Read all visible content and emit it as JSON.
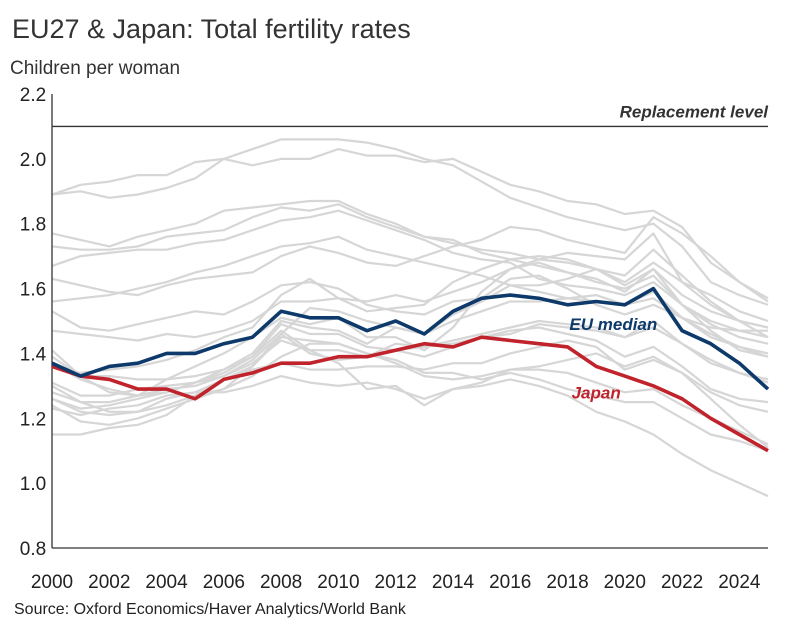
{
  "header": {
    "title": "EU27 & Japan: Total fertility rates",
    "subtitle": "Children per woman"
  },
  "footer": {
    "source": "Source: Oxford Economics/Haver Analytics/World Bank"
  },
  "chart_data": {
    "type": "line",
    "title": "EU27 & Japan: Total fertility rates",
    "ylabel": "Children per woman",
    "xlabel": "",
    "x": [
      2000,
      2001,
      2002,
      2003,
      2004,
      2005,
      2006,
      2007,
      2008,
      2009,
      2010,
      2011,
      2012,
      2013,
      2014,
      2015,
      2016,
      2017,
      2018,
      2019,
      2020,
      2021,
      2022,
      2023,
      2024,
      2025
    ],
    "xlim": [
      2000,
      2025
    ],
    "ylim": [
      0.8,
      2.2
    ],
    "xticks": [
      "2000",
      "2002",
      "2004",
      "2006",
      "2008",
      "2010",
      "2012",
      "2014",
      "2016",
      "2018",
      "2020",
      "2022",
      "2024"
    ],
    "yticks": [
      "0.8",
      "1.0",
      "1.2",
      "1.4",
      "1.6",
      "1.8",
      "2.0",
      "2.2"
    ],
    "grid": false,
    "reference_line": {
      "label": "Replacement level",
      "value": 2.1
    },
    "series": [
      {
        "name": "EU median",
        "color": "#0d3a6b",
        "values": [
          1.37,
          1.33,
          1.36,
          1.37,
          1.4,
          1.4,
          1.43,
          1.45,
          1.53,
          1.51,
          1.51,
          1.47,
          1.5,
          1.46,
          1.53,
          1.57,
          1.58,
          1.57,
          1.55,
          1.56,
          1.55,
          1.6,
          1.47,
          1.43,
          1.37,
          1.29
        ]
      },
      {
        "name": "Japan",
        "color": "#c0232b",
        "values": [
          1.36,
          1.33,
          1.32,
          1.29,
          1.29,
          1.26,
          1.32,
          1.34,
          1.37,
          1.37,
          1.39,
          1.39,
          1.41,
          1.43,
          1.42,
          1.45,
          1.44,
          1.43,
          1.42,
          1.36,
          1.33,
          1.3,
          1.26,
          1.2,
          1.15,
          1.1
        ]
      }
    ],
    "background_series_color": "#d6d6d6",
    "background_series": [
      [
        1.89,
        1.9,
        1.88,
        1.89,
        1.91,
        1.94,
        2.0,
        1.98,
        2.0,
        2.0,
        2.03,
        2.01,
        2.01,
        1.99,
        2.0,
        1.96,
        1.92,
        1.9,
        1.87,
        1.86,
        1.83,
        1.84,
        1.79,
        1.68,
        1.62,
        1.57
      ],
      [
        1.89,
        1.92,
        1.93,
        1.95,
        1.95,
        1.99,
        2.0,
        2.03,
        2.06,
        2.06,
        2.06,
        2.05,
        2.03,
        2.0,
        1.98,
        1.93,
        1.88,
        1.85,
        1.82,
        1.8,
        1.78,
        1.8,
        1.73,
        1.62,
        1.58,
        1.55
      ],
      [
        1.77,
        1.75,
        1.73,
        1.76,
        1.78,
        1.8,
        1.84,
        1.85,
        1.86,
        1.87,
        1.87,
        1.83,
        1.8,
        1.76,
        1.74,
        1.72,
        1.71,
        1.69,
        1.68,
        1.66,
        1.64,
        1.72,
        1.64,
        1.56,
        1.5,
        1.45
      ],
      [
        1.73,
        1.72,
        1.72,
        1.73,
        1.76,
        1.77,
        1.78,
        1.82,
        1.85,
        1.84,
        1.86,
        1.82,
        1.79,
        1.76,
        1.75,
        1.71,
        1.69,
        1.67,
        1.65,
        1.62,
        1.6,
        1.64,
        1.55,
        1.5,
        1.47,
        1.45
      ],
      [
        1.67,
        1.7,
        1.71,
        1.72,
        1.72,
        1.74,
        1.75,
        1.78,
        1.81,
        1.82,
        1.84,
        1.81,
        1.78,
        1.75,
        1.71,
        1.69,
        1.68,
        1.63,
        1.61,
        1.6,
        1.58,
        1.62,
        1.55,
        1.49,
        1.45,
        1.43
      ],
      [
        1.56,
        1.57,
        1.58,
        1.6,
        1.62,
        1.65,
        1.67,
        1.7,
        1.73,
        1.74,
        1.76,
        1.72,
        1.7,
        1.68,
        1.66,
        1.64,
        1.61,
        1.59,
        1.57,
        1.56,
        1.55,
        1.57,
        1.51,
        1.45,
        1.42,
        1.39
      ],
      [
        1.63,
        1.61,
        1.59,
        1.58,
        1.61,
        1.63,
        1.64,
        1.65,
        1.7,
        1.73,
        1.71,
        1.68,
        1.67,
        1.7,
        1.73,
        1.75,
        1.79,
        1.78,
        1.75,
        1.73,
        1.71,
        1.82,
        1.77,
        1.7,
        1.62,
        1.56
      ],
      [
        1.53,
        1.48,
        1.47,
        1.49,
        1.51,
        1.53,
        1.52,
        1.56,
        1.61,
        1.62,
        1.6,
        1.55,
        1.53,
        1.52,
        1.56,
        1.57,
        1.63,
        1.64,
        1.6,
        1.55,
        1.52,
        1.55,
        1.51,
        1.48,
        1.47,
        1.47
      ],
      [
        1.47,
        1.46,
        1.45,
        1.44,
        1.46,
        1.45,
        1.47,
        1.5,
        1.56,
        1.56,
        1.57,
        1.56,
        1.58,
        1.56,
        1.59,
        1.62,
        1.66,
        1.68,
        1.65,
        1.63,
        1.59,
        1.66,
        1.58,
        1.53,
        1.5,
        1.48
      ],
      [
        1.39,
        1.33,
        1.33,
        1.32,
        1.32,
        1.36,
        1.4,
        1.45,
        1.51,
        1.49,
        1.51,
        1.45,
        1.45,
        1.41,
        1.48,
        1.59,
        1.66,
        1.69,
        1.71,
        1.7,
        1.69,
        1.77,
        1.62,
        1.58,
        1.53,
        1.5
      ],
      [
        1.37,
        1.32,
        1.29,
        1.27,
        1.32,
        1.33,
        1.35,
        1.4,
        1.5,
        1.48,
        1.47,
        1.43,
        1.48,
        1.46,
        1.52,
        1.56,
        1.61,
        1.61,
        1.63,
        1.66,
        1.61,
        1.66,
        1.55,
        1.47,
        1.41,
        1.39
      ],
      [
        1.3,
        1.25,
        1.22,
        1.22,
        1.26,
        1.28,
        1.32,
        1.36,
        1.46,
        1.4,
        1.38,
        1.39,
        1.41,
        1.42,
        1.43,
        1.45,
        1.47,
        1.48,
        1.46,
        1.44,
        1.39,
        1.42,
        1.36,
        1.29,
        1.26,
        1.25
      ],
      [
        1.26,
        1.22,
        1.21,
        1.22,
        1.24,
        1.27,
        1.29,
        1.36,
        1.45,
        1.44,
        1.43,
        1.4,
        1.38,
        1.34,
        1.34,
        1.32,
        1.34,
        1.32,
        1.29,
        1.27,
        1.25,
        1.25,
        1.2,
        1.15,
        1.13,
        1.1
      ],
      [
        1.24,
        1.19,
        1.18,
        1.2,
        1.23,
        1.26,
        1.29,
        1.33,
        1.39,
        1.43,
        1.43,
        1.4,
        1.37,
        1.33,
        1.32,
        1.33,
        1.35,
        1.36,
        1.38,
        1.4,
        1.36,
        1.39,
        1.34,
        1.28,
        1.24,
        1.22
      ],
      [
        1.15,
        1.15,
        1.17,
        1.18,
        1.21,
        1.27,
        1.32,
        1.35,
        1.37,
        1.35,
        1.35,
        1.36,
        1.36,
        1.35,
        1.37,
        1.37,
        1.4,
        1.42,
        1.44,
        1.42,
        1.35,
        1.38,
        1.34,
        1.26,
        1.18,
        1.11
      ],
      [
        1.23,
        1.21,
        1.23,
        1.24,
        1.27,
        1.28,
        1.28,
        1.3,
        1.33,
        1.31,
        1.3,
        1.31,
        1.29,
        1.26,
        1.29,
        1.3,
        1.32,
        1.3,
        1.27,
        1.22,
        1.19,
        1.15,
        1.09,
        1.04,
        1.0,
        0.96
      ],
      [
        1.41,
        1.33,
        1.28,
        1.27,
        1.28,
        1.31,
        1.35,
        1.39,
        1.47,
        1.41,
        1.37,
        1.29,
        1.3,
        1.24,
        1.29,
        1.31,
        1.35,
        1.35,
        1.34,
        1.31,
        1.28,
        1.29,
        1.24,
        1.2,
        1.16,
        1.12
      ],
      [
        1.31,
        1.27,
        1.27,
        1.29,
        1.3,
        1.31,
        1.33,
        1.37,
        1.44,
        1.41,
        1.41,
        1.39,
        1.43,
        1.42,
        1.44,
        1.46,
        1.48,
        1.5,
        1.49,
        1.48,
        1.45,
        1.48,
        1.43,
        1.38,
        1.34,
        1.32
      ],
      [
        1.28,
        1.25,
        1.25,
        1.27,
        1.29,
        1.3,
        1.33,
        1.38,
        1.46,
        1.54,
        1.53,
        1.5,
        1.48,
        1.46,
        1.5,
        1.53,
        1.56,
        1.56,
        1.57,
        1.58,
        1.55,
        1.59,
        1.51,
        1.46,
        1.42,
        1.4
      ],
      [
        1.36,
        1.34,
        1.35,
        1.36,
        1.38,
        1.41,
        1.45,
        1.48,
        1.58,
        1.63,
        1.57,
        1.53,
        1.54,
        1.55,
        1.62,
        1.66,
        1.69,
        1.7,
        1.69,
        1.66,
        1.62,
        1.68,
        1.62,
        1.55,
        1.5,
        1.48
      ],
      [
        1.26,
        1.23,
        1.24,
        1.26,
        1.28,
        1.31,
        1.34,
        1.39,
        1.49,
        1.46,
        1.46,
        1.42,
        1.41,
        1.39,
        1.42,
        1.45,
        1.46,
        1.49,
        1.48,
        1.47,
        1.45,
        1.5,
        1.43,
        1.37,
        1.34,
        1.31
      ]
    ]
  }
}
